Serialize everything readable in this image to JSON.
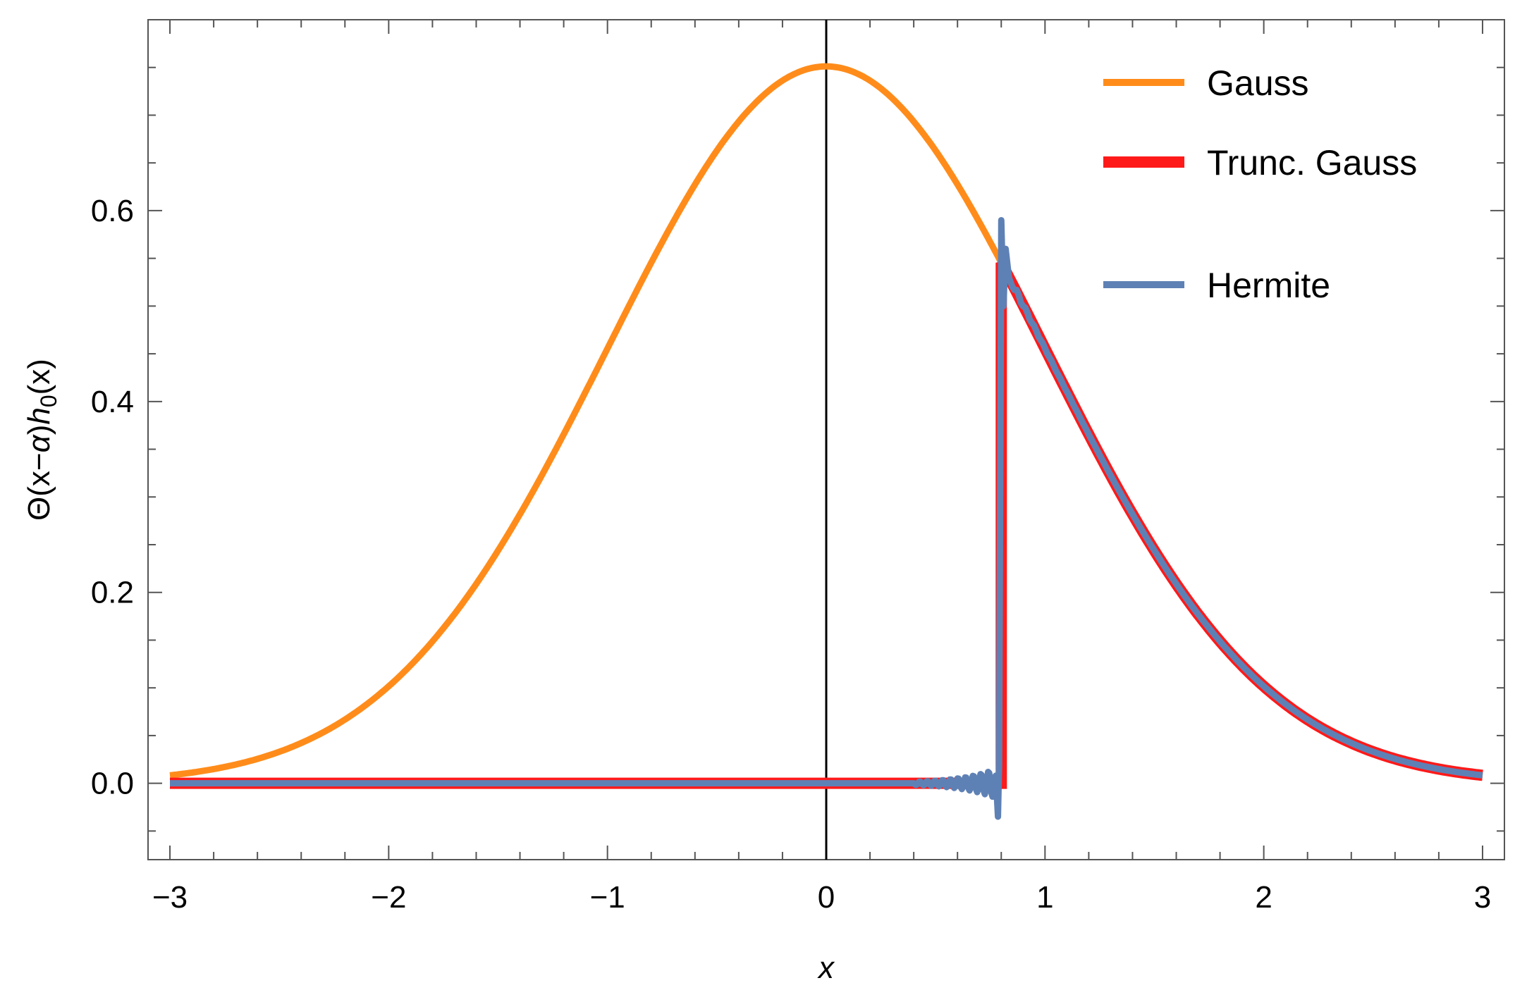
{
  "chart_data": {
    "type": "line",
    "title": "",
    "xlabel": "x",
    "ylabel_parts": [
      "Θ(x−",
      "α",
      ")",
      "h",
      "0",
      "(x)"
    ],
    "xlim": [
      -3.1,
      3.1
    ],
    "ylim": [
      -0.08,
      0.8
    ],
    "x_ticks": [
      -3,
      -2,
      -1,
      0,
      1,
      2,
      3
    ],
    "x_tick_labels": [
      "−3",
      "−2",
      "−1",
      "0",
      "1",
      "2",
      "3"
    ],
    "y_ticks": [
      0.0,
      0.2,
      0.4,
      0.6
    ],
    "y_tick_labels": [
      "0.0",
      "0.2",
      "0.4",
      "0.6"
    ],
    "x_minor_step": 0.2,
    "y_minor_step": 0.05,
    "grid": false,
    "legend_position": "top-right",
    "vertical_reference_line_x": 0,
    "truncation_alpha": 0.8,
    "gauss_peak": 0.7511,
    "x_range": [
      -3,
      3
    ],
    "series": [
      {
        "name": "Gauss",
        "color": "#ff8c1a"
      },
      {
        "name": "Trunc. Gauss",
        "color": "#ff1a1a"
      },
      {
        "name": "Hermite",
        "color": "#5e81b5"
      }
    ],
    "hermite_spike": {
      "x": 0.8,
      "y_max": 0.59,
      "y_min": -0.035
    }
  }
}
